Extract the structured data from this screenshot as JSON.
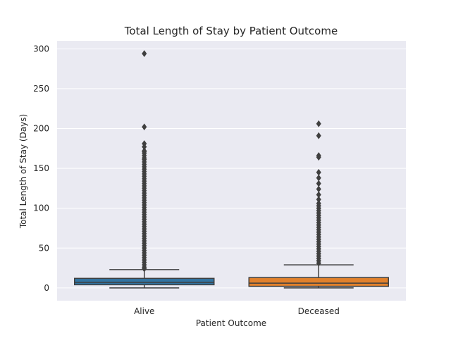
{
  "chart_data": {
    "type": "box",
    "title": "Total Length of Stay by Patient Outcome",
    "xlabel": "Patient Outcome",
    "ylabel": "Total Length of Stay (Days)",
    "ylim": [
      -16,
      310
    ],
    "yticks": [
      0,
      50,
      100,
      150,
      200,
      250,
      300
    ],
    "grid": true,
    "categories": [
      "Alive",
      "Deceased"
    ],
    "colors": [
      "#3274a1",
      "#e1812c"
    ],
    "series": [
      {
        "category": "Alive",
        "whisker_low": 0,
        "q1": 4,
        "median": 7,
        "q3": 12,
        "whisker_high": 23,
        "outliers": [
          294,
          202,
          181,
          177,
          172,
          171,
          169,
          166,
          163,
          161,
          158,
          155,
          152,
          149,
          146,
          143,
          140,
          137,
          134,
          131,
          128,
          125,
          122,
          119,
          116,
          113,
          110,
          107,
          104,
          101,
          98,
          95,
          92,
          89,
          86,
          83,
          80,
          77,
          74,
          71,
          68,
          65,
          62,
          59,
          56,
          53,
          50,
          47,
          44,
          41,
          38,
          35,
          32,
          29,
          26,
          24
        ]
      },
      {
        "category": "Deceased",
        "whisker_low": 0,
        "q1": 2,
        "median": 6,
        "q3": 13,
        "whisker_high": 29,
        "outliers": [
          206,
          191,
          166,
          164,
          145,
          138,
          131,
          124,
          117,
          111,
          106,
          103,
          100,
          97,
          94,
          91,
          88,
          85,
          82,
          79,
          76,
          73,
          70,
          67,
          64,
          61,
          58,
          55,
          52,
          49,
          46,
          43,
          40,
          37,
          34,
          31
        ]
      }
    ]
  }
}
